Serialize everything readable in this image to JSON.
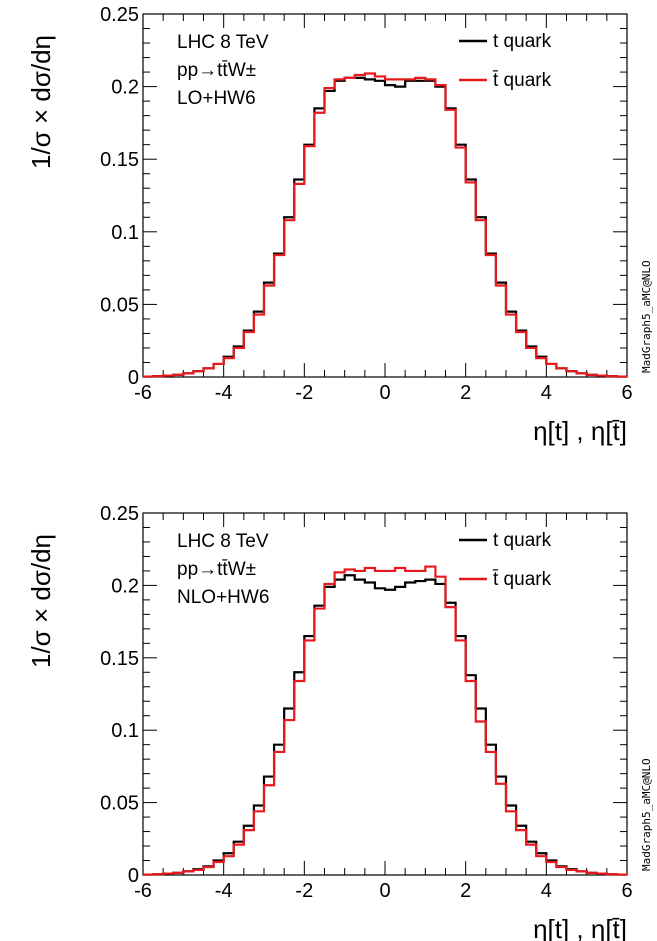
{
  "chart_data": [
    {
      "type": "line",
      "step": true,
      "x_edges": [
        -6,
        -5.75,
        -5.5,
        -5.25,
        -5,
        -4.75,
        -4.5,
        -4.25,
        -4,
        -3.75,
        -3.5,
        -3.25,
        -3,
        -2.75,
        -2.5,
        -2.25,
        -2,
        -1.75,
        -1.5,
        -1.25,
        -1,
        -0.75,
        -0.5,
        -0.25,
        0,
        0.25,
        0.5,
        0.75,
        1,
        1.25,
        1.5,
        1.75,
        2,
        2.25,
        2.5,
        2.75,
        3,
        3.25,
        3.5,
        3.75,
        4,
        4.25,
        4.5,
        4.75,
        5,
        5.25,
        5.5,
        5.75,
        6
      ],
      "series": [
        {
          "name": "t quark",
          "color": "#000000",
          "values": [
            0.0003,
            0.0006,
            0.001,
            0.0015,
            0.0025,
            0.004,
            0.006,
            0.009,
            0.014,
            0.021,
            0.032,
            0.045,
            0.065,
            0.085,
            0.11,
            0.136,
            0.16,
            0.185,
            0.197,
            0.204,
            0.206,
            0.206,
            0.205,
            0.204,
            0.201,
            0.2,
            0.204,
            0.204,
            0.204,
            0.2,
            0.185,
            0.16,
            0.136,
            0.11,
            0.085,
            0.065,
            0.045,
            0.032,
            0.021,
            0.014,
            0.009,
            0.006,
            0.004,
            0.0025,
            0.0015,
            0.001,
            0.0006,
            0.0003
          ]
        },
        {
          "name": "t̄ quark",
          "color": "#e8191c",
          "values": [
            0.0003,
            0.0006,
            0.001,
            0.0015,
            0.0025,
            0.004,
            0.006,
            0.009,
            0.013,
            0.02,
            0.031,
            0.043,
            0.063,
            0.084,
            0.108,
            0.133,
            0.159,
            0.182,
            0.199,
            0.205,
            0.206,
            0.208,
            0.209,
            0.207,
            0.205,
            0.205,
            0.205,
            0.206,
            0.205,
            0.201,
            0.184,
            0.158,
            0.134,
            0.108,
            0.084,
            0.063,
            0.043,
            0.031,
            0.02,
            0.013,
            0.009,
            0.006,
            0.004,
            0.0025,
            0.0015,
            0.001,
            0.0006,
            0.0003
          ]
        }
      ],
      "xlim": [
        -6,
        6
      ],
      "ylim": [
        0,
        0.25
      ],
      "xticks": [
        "-6",
        "-4",
        "-2",
        "0",
        "2",
        "4",
        "6"
      ],
      "yticks": [
        "0",
        "0.05",
        "0.1",
        "0.15",
        "0.2",
        "0.25"
      ],
      "xlabel": "η[t] , η[t̄]",
      "ylabel": "1/σ × dσ/dη",
      "annotations": [
        "LHC 8 TeV",
        "pp→tt̄W±",
        "LO+HW6"
      ],
      "side_label": "MadGraph5_aMC@NLO",
      "legend_position": "top-right",
      "grid": false
    },
    {
      "type": "line",
      "step": true,
      "x_edges": [
        -6,
        -5.75,
        -5.5,
        -5.25,
        -5,
        -4.75,
        -4.5,
        -4.25,
        -4,
        -3.75,
        -3.5,
        -3.25,
        -3,
        -2.75,
        -2.5,
        -2.25,
        -2,
        -1.75,
        -1.5,
        -1.25,
        -1,
        -0.75,
        -0.5,
        -0.25,
        0,
        0.25,
        0.5,
        0.75,
        1,
        1.25,
        1.5,
        1.75,
        2,
        2.25,
        2.5,
        2.75,
        3,
        3.25,
        3.5,
        3.75,
        4,
        4.25,
        4.5,
        4.75,
        5,
        5.25,
        5.5,
        5.75,
        6
      ],
      "series": [
        {
          "name": "t quark",
          "color": "#000000",
          "values": [
            0.0003,
            0.0006,
            0.001,
            0.0015,
            0.0025,
            0.004,
            0.006,
            0.01,
            0.015,
            0.023,
            0.034,
            0.048,
            0.068,
            0.09,
            0.115,
            0.14,
            0.165,
            0.186,
            0.199,
            0.204,
            0.207,
            0.204,
            0.202,
            0.198,
            0.197,
            0.199,
            0.202,
            0.203,
            0.204,
            0.201,
            0.188,
            0.165,
            0.138,
            0.115,
            0.09,
            0.068,
            0.048,
            0.034,
            0.023,
            0.015,
            0.01,
            0.006,
            0.004,
            0.0025,
            0.0015,
            0.001,
            0.0006,
            0.0003
          ]
        },
        {
          "name": "t̄ quark",
          "color": "#e8191c",
          "values": [
            0.0003,
            0.0006,
            0.001,
            0.0015,
            0.0025,
            0.0035,
            0.0055,
            0.009,
            0.013,
            0.021,
            0.031,
            0.044,
            0.062,
            0.085,
            0.107,
            0.134,
            0.162,
            0.184,
            0.201,
            0.209,
            0.211,
            0.21,
            0.212,
            0.21,
            0.21,
            0.212,
            0.21,
            0.21,
            0.213,
            0.206,
            0.185,
            0.162,
            0.134,
            0.106,
            0.085,
            0.063,
            0.044,
            0.031,
            0.021,
            0.013,
            0.009,
            0.0055,
            0.0035,
            0.0025,
            0.0015,
            0.001,
            0.0006,
            0.0003
          ]
        }
      ],
      "xlim": [
        -6,
        6
      ],
      "ylim": [
        0,
        0.25
      ],
      "xticks": [
        "-6",
        "-4",
        "-2",
        "0",
        "2",
        "4",
        "6"
      ],
      "yticks": [
        "0",
        "0.05",
        "0.1",
        "0.15",
        "0.2",
        "0.25"
      ],
      "xlabel": "η[t] , η[t̄]",
      "ylabel": "1/σ × dσ/dη",
      "annotations": [
        "LHC 8 TeV",
        "pp→tt̄W±",
        "NLO+HW6"
      ],
      "side_label": "MadGraph5_aMC@NLO",
      "legend_position": "top-right",
      "grid": false
    }
  ]
}
